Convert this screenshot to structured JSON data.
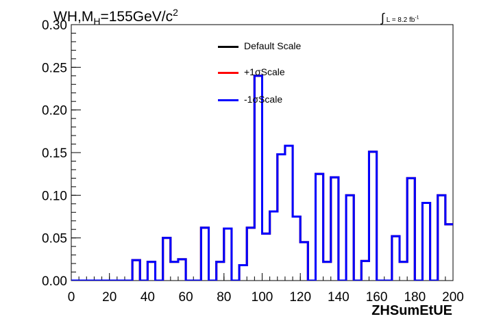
{
  "chart_data": {
    "type": "line",
    "style": "step-histogram",
    "title_prefix": "WH,M",
    "title_sub": "H",
    "title_suffix": "=155GeV/c",
    "title_sup": "2",
    "lumi_integral": "∫",
    "lumi_label": "L = 8.2 fb",
    "lumi_sup": "-1",
    "xlabel": "ZHSumEtUE",
    "xlim": [
      0,
      200
    ],
    "ylim": [
      0,
      0.3
    ],
    "x_ticks": [
      "0",
      "20",
      "40",
      "60",
      "80",
      "100",
      "120",
      "140",
      "160",
      "180",
      "200"
    ],
    "y_ticks": [
      "0.00",
      "0.05",
      "0.10",
      "0.15",
      "0.20",
      "0.25",
      "0.30"
    ],
    "bin_width": 4,
    "bin_edges_start": 0,
    "values": [
      0,
      0,
      0,
      0,
      0,
      0,
      0,
      0,
      0.024,
      0,
      0.022,
      0,
      0.05,
      0.022,
      0.025,
      0,
      0,
      0.062,
      0,
      0.022,
      0.061,
      0,
      0.018,
      0.062,
      0.24,
      0.055,
      0.081,
      0.148,
      0.158,
      0.075,
      0.045,
      0,
      0.125,
      0.022,
      0.121,
      0,
      0.1,
      0,
      0.023,
      0.151,
      0,
      0,
      0.052,
      0.022,
      0.12,
      0,
      0.091,
      0,
      0.1,
      0.066
    ],
    "legend_position": "top-center",
    "series": [
      {
        "name": "Default Scale",
        "color": "#000000"
      },
      {
        "name": "+1σScale",
        "color": "#ff0000"
      },
      {
        "name": "-1σScale",
        "color": "#0000ff"
      }
    ]
  }
}
